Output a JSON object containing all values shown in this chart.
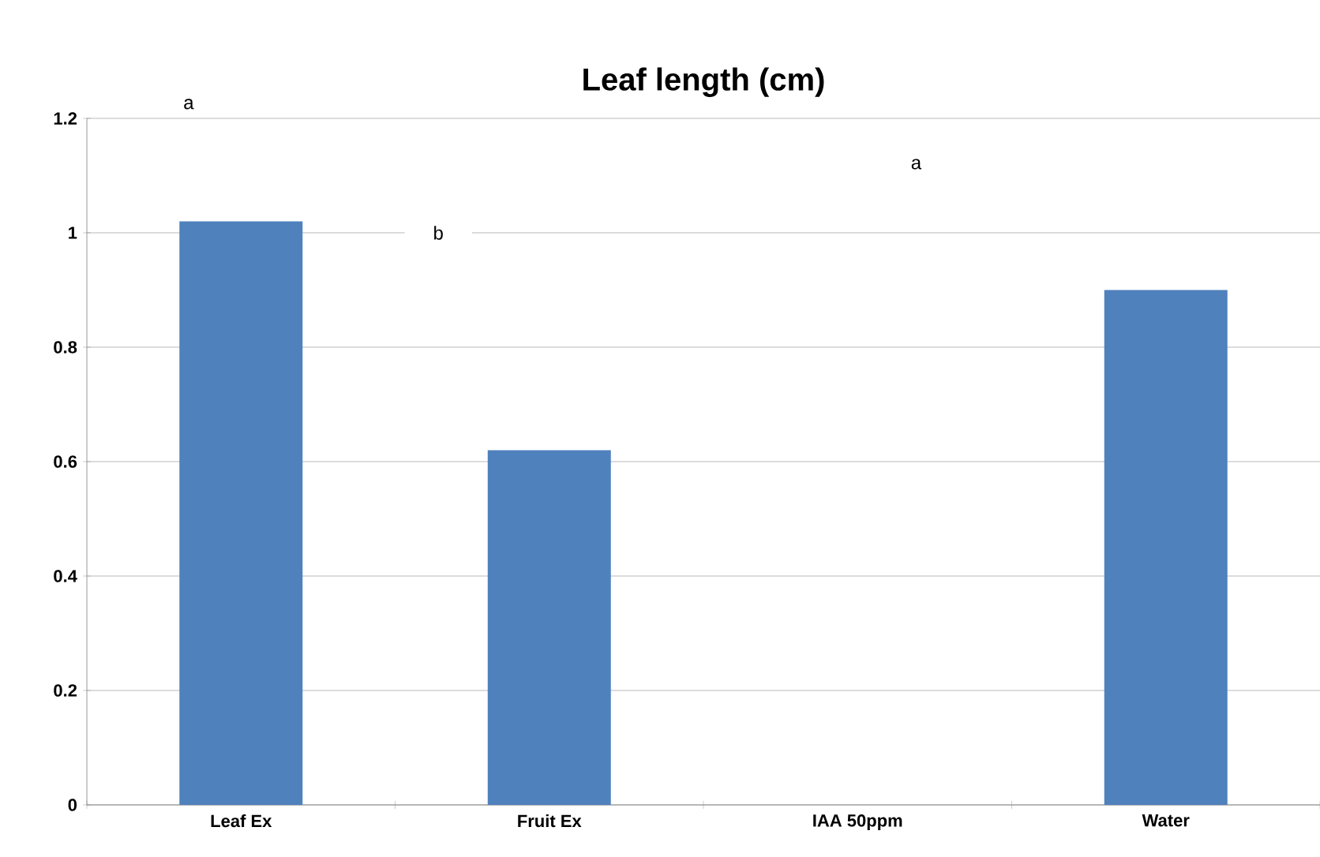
{
  "chart_data": {
    "type": "bar",
    "title": "Leaf length (cm)",
    "categories": [
      "Leaf Ex",
      "Fruit Ex",
      "IAA 50ppm",
      "Water"
    ],
    "values": [
      1.02,
      0.62,
      0,
      0.9
    ],
    "color": "#4f81bd",
    "ylim": [
      0,
      1.2
    ],
    "yticks": [
      0,
      0.2,
      0.4,
      0.6,
      0.8,
      1,
      1.2
    ],
    "grid": "y",
    "annotations": [
      "a",
      "b",
      "a"
    ]
  }
}
